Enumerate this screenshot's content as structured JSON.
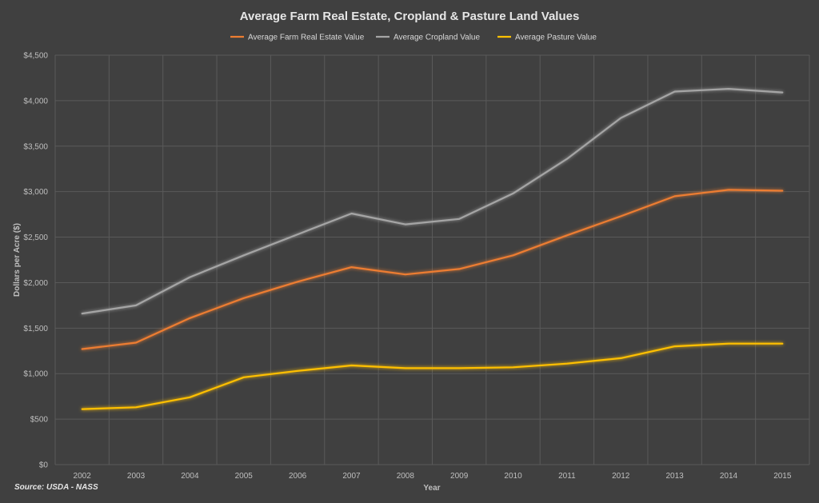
{
  "source": "Source: USDA - NASS",
  "chart_data": {
    "type": "line",
    "title": "Average Farm Real Estate, Cropland & Pasture Land Values",
    "xlabel": "Year",
    "ylabel": "Dollars per Acre ($)",
    "ylim": [
      0,
      4500
    ],
    "yticks": [
      0,
      500,
      1000,
      1500,
      2000,
      2500,
      3000,
      3500,
      4000,
      4500
    ],
    "ytick_labels": [
      "$0",
      "$500",
      "$1,000",
      "$1,500",
      "$2,000",
      "$2,500",
      "$3,000",
      "$3,500",
      "$4,000",
      "$4,500"
    ],
    "grid": true,
    "legend_position": "top",
    "categories": [
      "2002",
      "2003",
      "2004",
      "2005",
      "2006",
      "2007",
      "2008",
      "2009",
      "2010",
      "2011",
      "2012",
      "2013",
      "2014",
      "2015"
    ],
    "series": [
      {
        "name": "Average Farm Real Estate Value",
        "color": "#ed7d31",
        "values": [
          1270,
          1340,
          1610,
          1830,
          2010,
          2170,
          2090,
          2150,
          2300,
          2520,
          2730,
          2950,
          3020,
          3010
        ]
      },
      {
        "name": "Average Cropland Value",
        "color": "#a5a5a5",
        "values": [
          1660,
          1750,
          2060,
          2300,
          2530,
          2760,
          2640,
          2700,
          2980,
          3360,
          3810,
          4100,
          4130,
          4090
        ]
      },
      {
        "name": "Average Pasture Value",
        "color": "#ffc000",
        "values": [
          610,
          630,
          740,
          960,
          1030,
          1090,
          1060,
          1060,
          1070,
          1110,
          1170,
          1300,
          1330,
          1330
        ]
      }
    ]
  }
}
